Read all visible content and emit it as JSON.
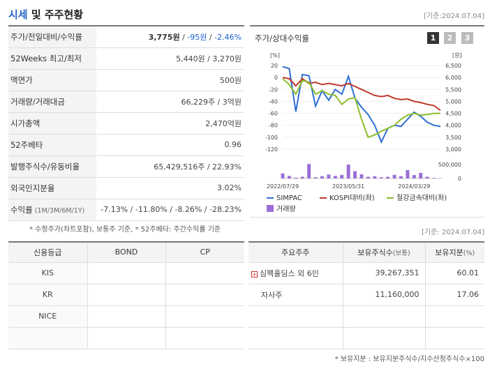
{
  "header": {
    "title_part1": "시세",
    "title_part2": " 및 주주현황",
    "asof": "[기준:2024.07.04]"
  },
  "quote": {
    "rows": [
      {
        "label": "주가/전일대비/수익률",
        "v1": "3,775원",
        "sep1": " / ",
        "v2": "-95원",
        "sep2": " / ",
        "v3": "-2.46%"
      },
      {
        "label": "52Weeks 최고/최저",
        "value": "5,440원 / 3,270원"
      },
      {
        "label": "액면가",
        "value": "500원"
      },
      {
        "label": "거래량/거래대금",
        "value": "66,229주 / 3억원"
      },
      {
        "label": "시가총액",
        "value": "2,470억원"
      },
      {
        "label": "52주베타",
        "value": "0.96"
      },
      {
        "label": "발행주식수/유동비율",
        "value": "65,429,516주 / 22.93%"
      },
      {
        "label": "외국인지분율",
        "value": "3.02%"
      },
      {
        "label": "수익률",
        "label_sub": " (1M/3M/6M/1Y)",
        "value": "-7.13% / -11.80% / -8.26% / -28.23%"
      }
    ],
    "note": "* 수정주가(차트포함), 보통주 기준, * 52주베타: 주간수익률 기준"
  },
  "chart_panel": {
    "title": "주가/상대수익률",
    "pages": [
      "1",
      "2",
      "3"
    ],
    "asof": "[기준: 2024.07.04]"
  },
  "chart_data": {
    "type": "line",
    "left_axis_unit": "[%]",
    "right_axis_unit": "[원]",
    "left_ylim": [
      -120,
      20
    ],
    "left_ticks": [
      "20",
      "0",
      "-20",
      "-40",
      "-60",
      "-80",
      "-100",
      "-120"
    ],
    "right_ylim": [
      3000,
      6500
    ],
    "right_ticks": [
      "6,500",
      "6,000",
      "5,500",
      "5,000",
      "4,500",
      "4,000",
      "3,500",
      "3,000"
    ],
    "volume_ticks": [
      "500,000",
      "0"
    ],
    "x_tick_labels": [
      "2022/07/29",
      "2023/05/31",
      "2024/03/29"
    ],
    "x": [
      "2022/07",
      "2022/08",
      "2022/09",
      "2022/10",
      "2022/11",
      "2022/12",
      "2023/01",
      "2023/02",
      "2023/03",
      "2023/04",
      "2023/05",
      "2023/06",
      "2023/07",
      "2023/08",
      "2023/09",
      "2023/10",
      "2023/11",
      "2023/12",
      "2024/01",
      "2024/02",
      "2024/03",
      "2024/04",
      "2024/05",
      "2024/06",
      "2024/07"
    ],
    "series": [
      {
        "name": "SIMPAC",
        "color": "#2d6fd2",
        "values": [
          18,
          15,
          -57,
          5,
          3,
          -48,
          -22,
          -38,
          -20,
          -28,
          2,
          -35,
          -50,
          -62,
          -80,
          -108,
          -85,
          -80,
          -82,
          -70,
          -58,
          -65,
          -75,
          -80,
          -82
        ]
      },
      {
        "name": "KOSPI대비(좌)",
        "color": "#c0392b",
        "values": [
          0,
          -2,
          -14,
          -2,
          -10,
          -8,
          -12,
          -10,
          -12,
          -14,
          -10,
          -15,
          -20,
          -25,
          -30,
          -32,
          -30,
          -35,
          -37,
          -36,
          -40,
          -42,
          -45,
          -47,
          -55
        ]
      },
      {
        "name": "철강금속대비(좌)",
        "color": "#8dbd2c",
        "values": [
          -2,
          -12,
          -28,
          -5,
          -8,
          -28,
          -22,
          -28,
          -30,
          -45,
          -36,
          -34,
          -70,
          -100,
          -96,
          -90,
          -85,
          -80,
          -70,
          -63,
          -60,
          -63,
          -62,
          -60,
          -60
        ]
      }
    ],
    "volume": {
      "name": "거래량",
      "color": "#9b6fd6",
      "values": [
        180000,
        90000,
        30000,
        60000,
        520000,
        40000,
        80000,
        140000,
        90000,
        130000,
        500000,
        260000,
        150000,
        60000,
        80000,
        40000,
        60000,
        130000,
        80000,
        300000,
        120000,
        200000,
        60000,
        20000,
        10000
      ]
    }
  },
  "credit": {
    "headers": [
      "신용등급",
      "BOND",
      "CP"
    ],
    "rows": [
      {
        "agency": "KIS",
        "bond": "",
        "cp": ""
      },
      {
        "agency": "KR",
        "bond": "",
        "cp": ""
      },
      {
        "agency": "NICE",
        "bond": "",
        "cp": ""
      },
      {
        "agency": "",
        "bond": "",
        "cp": ""
      }
    ]
  },
  "holders": {
    "headers": [
      "주요주주",
      "보유주식수",
      "(보통)",
      "보유지분",
      "(%)"
    ],
    "rows": [
      {
        "name": "심팩홀딩스 외 6인",
        "shares": "39,267,351",
        "pct": "60.01",
        "expandable": true
      },
      {
        "name": "자사주",
        "shares": "11,160,000",
        "pct": "17.06",
        "expandable": false
      }
    ],
    "note": "* 보유지분 : 보유지분주식수/지수산정주식수×100"
  }
}
